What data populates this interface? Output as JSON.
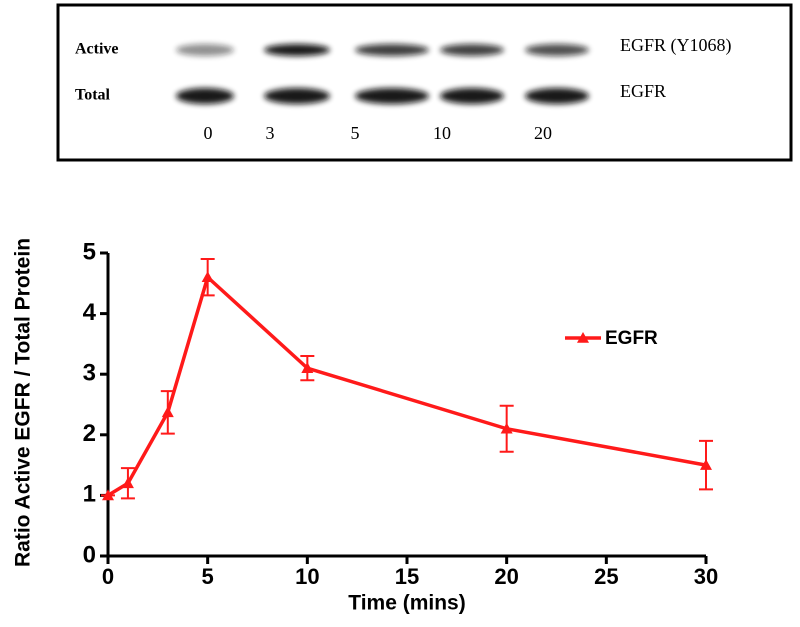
{
  "blot": {
    "rows": [
      "Active",
      "Total"
    ],
    "row_targets": [
      "EGFR (Y1068)",
      "EGFR"
    ],
    "lanes": [
      "0",
      "3",
      "5",
      "10",
      "20"
    ]
  },
  "chart_data": {
    "type": "line",
    "x": [
      0,
      1,
      3,
      5,
      10,
      20,
      30
    ],
    "series": [
      {
        "name": "EGFR",
        "color": "#ff1a1a",
        "values": [
          1,
          1.2,
          2.37,
          4.6,
          3.1,
          2.1,
          1.5
        ],
        "errors": [
          0,
          0.25,
          0.35,
          0.3,
          0.2,
          0.38,
          0.4
        ]
      }
    ],
    "xlim": [
      0,
      30
    ],
    "xticks": [
      0,
      5,
      10,
      15,
      20,
      25,
      30
    ],
    "ylim": [
      0,
      5
    ],
    "yticks": [
      0,
      1,
      2,
      3,
      4,
      5
    ],
    "xlabel": "Time (mins)",
    "ylabel": "Ratio Active EGFR / Total Protein",
    "legend": "right"
  }
}
